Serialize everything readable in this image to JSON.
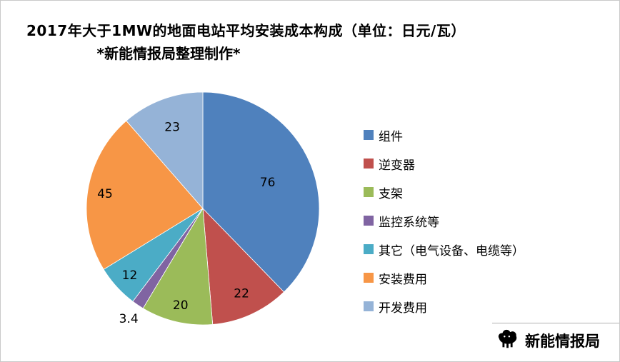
{
  "title": {
    "line1": "2017年大于1MW的地面电站平均安装成本构成（单位：日元/瓦）",
    "line2": "*新能情报局整理制作*"
  },
  "chart_data": {
    "type": "pie",
    "title": "2017年大于1MW的地面电站平均安装成本构成（单位：日元/瓦）",
    "unit": "日元/瓦",
    "start_angle_deg": 0,
    "direction": "clockwise",
    "legend_position": "right",
    "value_display": "absolute",
    "slices": [
      {
        "label": "组件",
        "value": 76,
        "color": "#4F81BD",
        "label_r": 0.6
      },
      {
        "label": "逆变器",
        "value": 22,
        "color": "#C0504D",
        "label_r": 0.8
      },
      {
        "label": "支架",
        "value": 20,
        "color": "#9BBB59",
        "label_r": 0.85
      },
      {
        "label": "监控系统等",
        "value": 3.4,
        "color": "#8064A2",
        "label_r": 1.14,
        "outside": true
      },
      {
        "label": "其它（电气设备、电缆等）",
        "value": 12,
        "color": "#4BACC6",
        "label_r": 0.85
      },
      {
        "label": "安装费用",
        "value": 45,
        "color": "#F79646",
        "label_r": 0.85
      },
      {
        "label": "开发费用",
        "value": 23,
        "color": "#95B3D7",
        "label_r": 0.75
      }
    ]
  },
  "watermark": {
    "text": "新能情报局"
  }
}
